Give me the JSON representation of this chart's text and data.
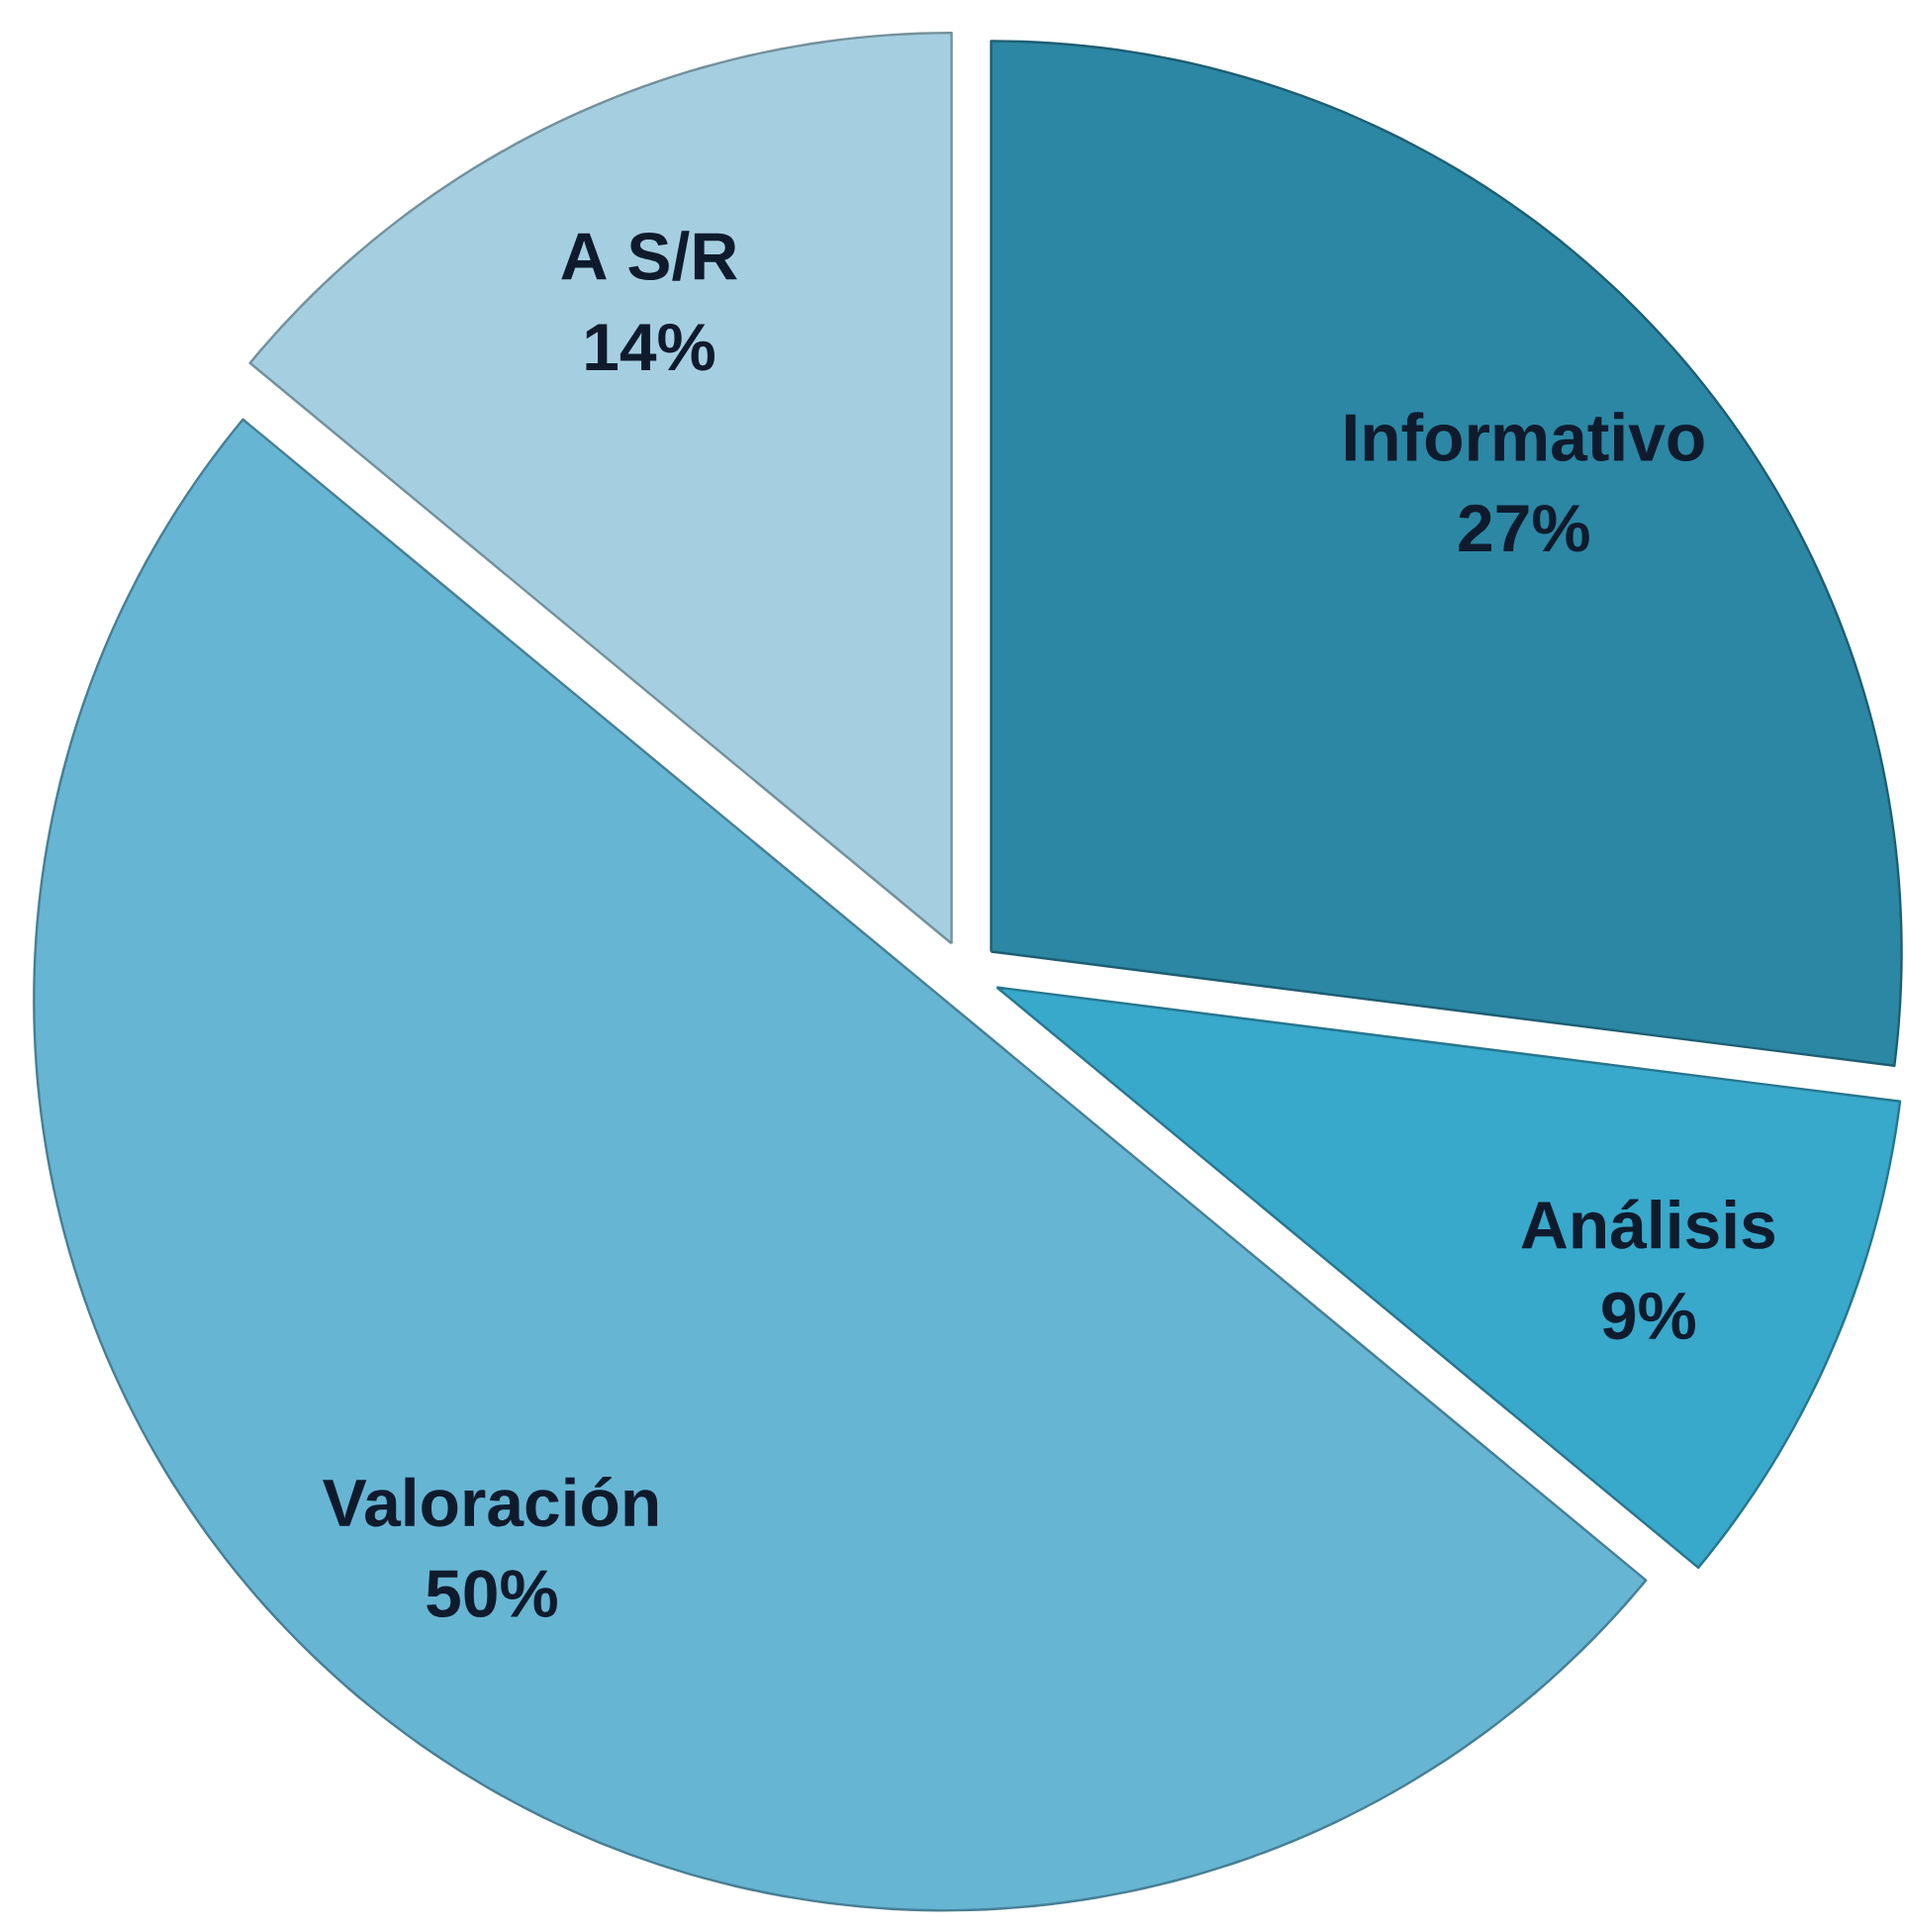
{
  "chart_data": {
    "type": "pie",
    "categories": [
      "Informativo",
      "Análisis",
      "Valoración",
      "A S/R"
    ],
    "values": [
      27,
      9,
      50,
      14
    ],
    "value_labels": [
      "27%",
      "9%",
      "50%",
      "14%"
    ],
    "colors": [
      "#2b87a4",
      "#38a8cb",
      "#66b5d3",
      "#a5cfe0"
    ]
  }
}
